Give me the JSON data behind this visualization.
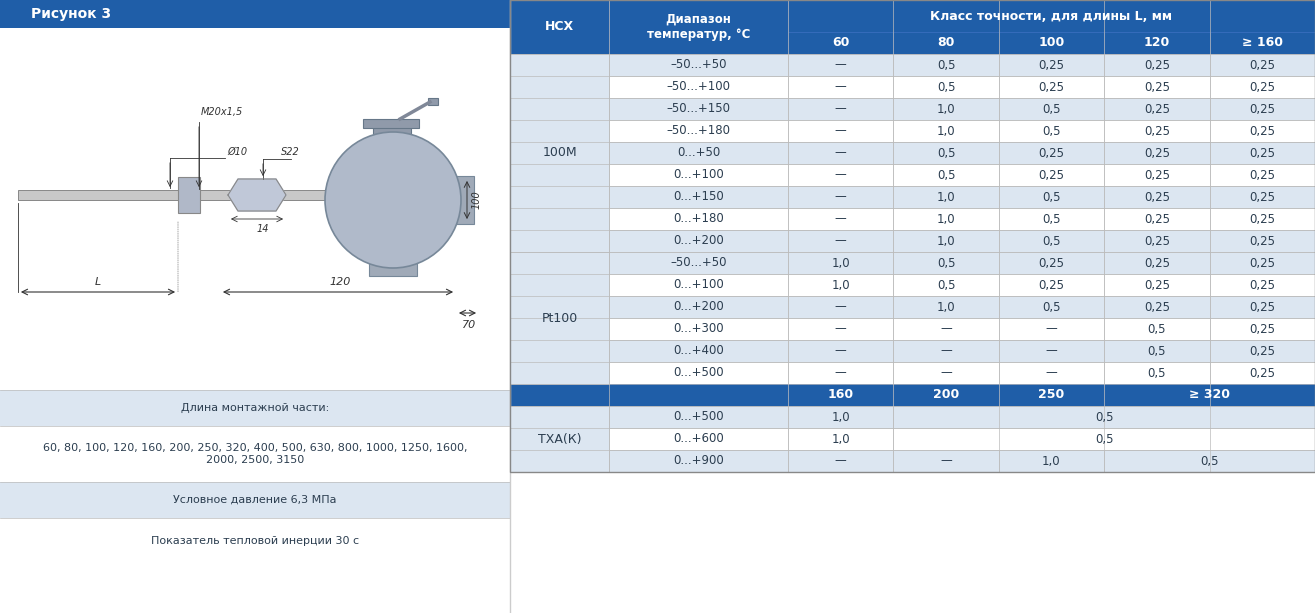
{
  "title": "Рисунок 3",
  "title_bg": "#1f5ea8",
  "title_color": "#ffffff",
  "header_bg": "#1f5ea8",
  "row_bg_light": "#dce6f1",
  "row_bg_white": "#ffffff",
  "separator_dark_bg": "#1f5ea8",
  "text_color": "#2c3e50",
  "col_headers_sub": [
    "60",
    "80",
    "100",
    "120",
    "≥ 160"
  ],
  "rows_100M": [
    [
      "–50...+50",
      "—",
      "0,5",
      "0,25",
      "0,25",
      "0,25"
    ],
    [
      "–50...+100",
      "—",
      "0,5",
      "0,25",
      "0,25",
      "0,25"
    ],
    [
      "–50...+150",
      "—",
      "1,0",
      "0,5",
      "0,25",
      "0,25"
    ],
    [
      "–50...+180",
      "—",
      "1,0",
      "0,5",
      "0,25",
      "0,25"
    ],
    [
      "0...+50",
      "—",
      "0,5",
      "0,25",
      "0,25",
      "0,25"
    ],
    [
      "0...+100",
      "—",
      "0,5",
      "0,25",
      "0,25",
      "0,25"
    ],
    [
      "0...+150",
      "—",
      "1,0",
      "0,5",
      "0,25",
      "0,25"
    ],
    [
      "0...+180",
      "—",
      "1,0",
      "0,5",
      "0,25",
      "0,25"
    ],
    [
      "0...+200",
      "—",
      "1,0",
      "0,5",
      "0,25",
      "0,25"
    ]
  ],
  "rows_Pt100": [
    [
      "–50...+50",
      "1,0",
      "0,5",
      "0,25",
      "0,25",
      "0,25"
    ],
    [
      "0...+100",
      "1,0",
      "0,5",
      "0,25",
      "0,25",
      "0,25"
    ],
    [
      "0...+200",
      "—",
      "1,0",
      "0,5",
      "0,25",
      "0,25"
    ],
    [
      "0...+300",
      "—",
      "—",
      "—",
      "0,5",
      "0,25"
    ],
    [
      "0...+400",
      "—",
      "—",
      "—",
      "0,5",
      "0,25"
    ],
    [
      "0...+500",
      "—",
      "—",
      "—",
      "0,5",
      "0,25"
    ]
  ],
  "bottom_texts": [
    "Длина монтажной части:",
    "60, 80, 100, 120, 160, 200, 250, 320, 400, 500, 630, 800, 1000, 1250, 1600,\n2000, 2500, 3150",
    "Условное давление 6,3 МПа",
    "Показатель тепловой инерции 30 с"
  ]
}
